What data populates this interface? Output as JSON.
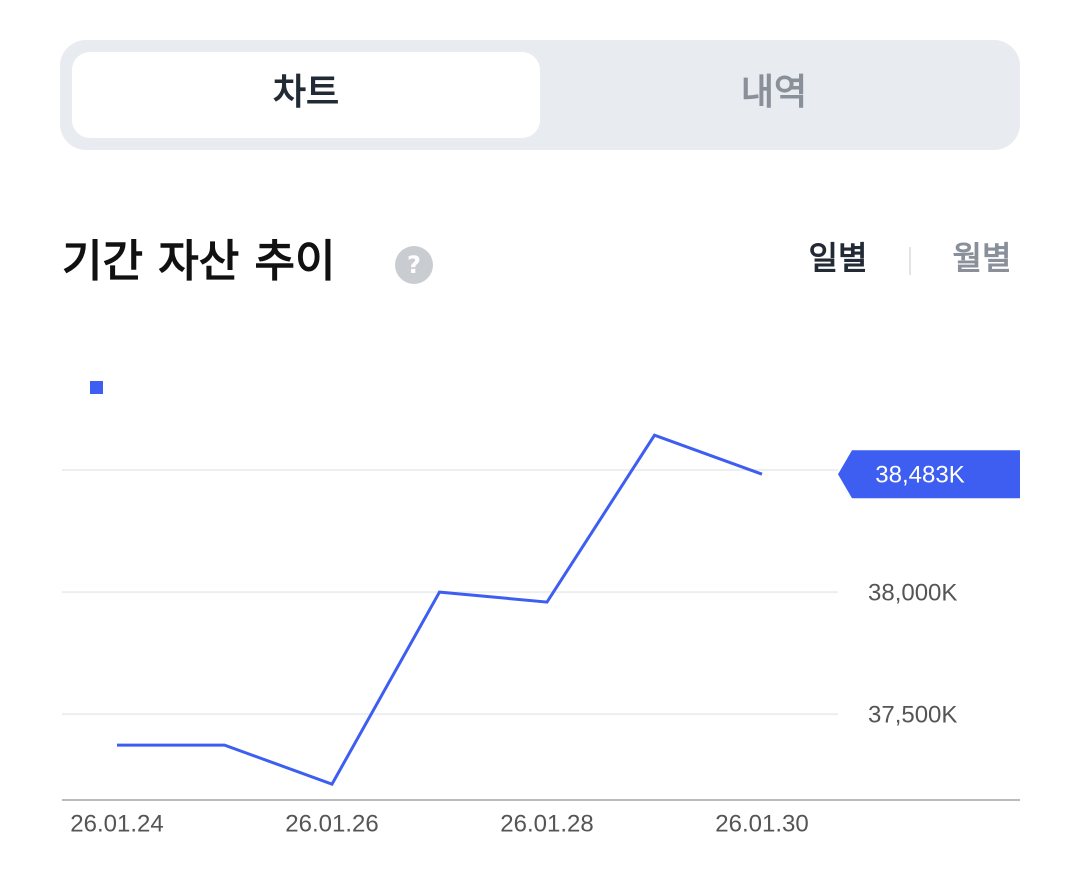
{
  "tabs": [
    "차트",
    "내역"
  ],
  "section": {
    "title": "기간 자산 추이",
    "help": "?",
    "periods": [
      "일별",
      "월별"
    ]
  },
  "chart_data": {
    "type": "line",
    "categories": [
      "26.01.24",
      null,
      "26.01.26",
      null,
      "26.01.28",
      null,
      "26.01.30"
    ],
    "series": [
      {
        "color": "#3d5ef0",
        "values": [
          37373,
          37373,
          37213,
          38000,
          37959,
          38643,
          38483
        ],
        "value_labels": [
          null,
          null,
          null,
          null,
          null,
          null,
          "38,483K"
        ]
      }
    ],
    "ylim": [
      37148,
      38869
    ],
    "yticks": [
      {
        "value": 37500,
        "label": "37,500K"
      },
      {
        "value": 38000,
        "label": "38,000K"
      },
      {
        "value": 38500,
        "label": null
      }
    ],
    "grid": true
  }
}
